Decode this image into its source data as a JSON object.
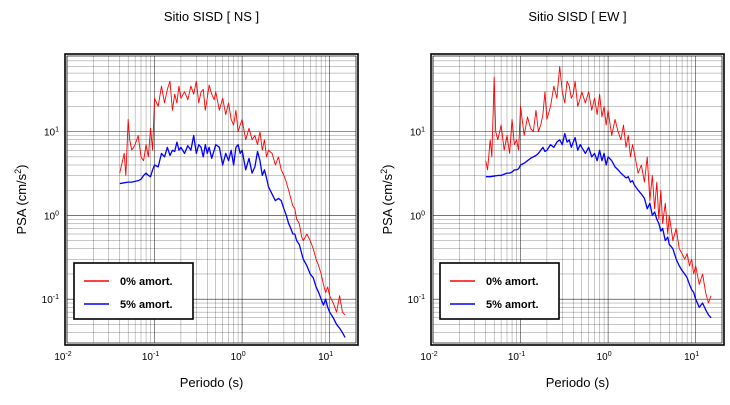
{
  "chart_data": [
    {
      "type": "line",
      "title": "Sitio SISD [ NS ]",
      "xlabel": "Periodo (s)",
      "ylabel": "PSA (cm/s",
      "ylabel_exp": "2",
      "ylabel_close": ")",
      "x_scale": "log",
      "y_scale": "log",
      "xlim": [
        0.01,
        20
      ],
      "ylim": [
        0.03,
        80
      ],
      "x_ticks": [
        {
          "base": "10",
          "exp": "-2",
          "value": 0.01
        },
        {
          "base": "10",
          "exp": "-1",
          "value": 0.1
        },
        {
          "base": "10",
          "exp": "0",
          "value": 1
        },
        {
          "base": "10",
          "exp": "1",
          "value": 10
        }
      ],
      "y_ticks": [
        {
          "base": "10",
          "exp": "-1",
          "value": 0.1
        },
        {
          "base": "10",
          "exp": "0",
          "value": 1
        },
        {
          "base": "10",
          "exp": "1",
          "value": 10
        }
      ],
      "grid": true,
      "legend_position": "bottom-left",
      "series": [
        {
          "name": "0% amort.",
          "color": "#ff0000",
          "x": [
            0.04,
            0.042,
            0.045,
            0.047,
            0.05,
            0.052,
            0.055,
            0.06,
            0.065,
            0.07,
            0.075,
            0.08,
            0.085,
            0.09,
            0.095,
            0.1,
            0.11,
            0.12,
            0.13,
            0.14,
            0.15,
            0.16,
            0.17,
            0.18,
            0.19,
            0.2,
            0.22,
            0.24,
            0.26,
            0.28,
            0.3,
            0.32,
            0.34,
            0.36,
            0.38,
            0.4,
            0.42,
            0.45,
            0.48,
            0.5,
            0.55,
            0.6,
            0.65,
            0.7,
            0.75,
            0.8,
            0.85,
            0.9,
            0.95,
            1.0,
            1.1,
            1.2,
            1.3,
            1.4,
            1.5,
            1.6,
            1.7,
            1.8,
            1.9,
            2.0,
            2.2,
            2.4,
            2.6,
            2.8,
            3.0,
            3.2,
            3.4,
            3.6,
            3.8,
            4.0,
            4.2,
            4.5,
            4.8,
            5.0,
            5.5,
            6.0,
            6.5,
            7.0,
            7.5,
            8.0,
            8.5,
            9.0,
            9.5,
            10.0,
            11.0,
            12.0,
            13.0,
            14.0,
            15.0
          ],
          "y": [
            3.2,
            4.0,
            5.5,
            3.0,
            14.0,
            8.0,
            6.0,
            7.0,
            9.0,
            5.0,
            4.5,
            7.0,
            5.0,
            11.0,
            6.0,
            25.0,
            20.0,
            35.0,
            22.0,
            32.0,
            40.0,
            18.0,
            28.0,
            22.0,
            35.0,
            25.0,
            30.0,
            24.0,
            35.0,
            28.0,
            40.0,
            22.0,
            30.0,
            32.0,
            18.0,
            25.0,
            36.0,
            28.0,
            24.0,
            30.0,
            18.0,
            25.0,
            16.0,
            22.0,
            14.0,
            12.0,
            18.0,
            10.0,
            12.0,
            14.0,
            8.0,
            11.0,
            8.0,
            9.0,
            7.0,
            10.0,
            6.0,
            8.0,
            5.0,
            6.0,
            5.5,
            4.0,
            5.0,
            3.5,
            3.0,
            2.5,
            2.0,
            1.6,
            1.3,
            1.2,
            0.9,
            0.8,
            0.55,
            0.5,
            0.6,
            0.5,
            0.4,
            0.3,
            0.25,
            0.2,
            0.15,
            0.12,
            0.14,
            0.11,
            0.09,
            0.07,
            0.11,
            0.07,
            0.065
          ]
        },
        {
          "name": "5% amort.",
          "color": "#0000ff",
          "x": [
            0.04,
            0.045,
            0.05,
            0.055,
            0.06,
            0.065,
            0.07,
            0.075,
            0.08,
            0.085,
            0.09,
            0.095,
            0.1,
            0.11,
            0.12,
            0.13,
            0.14,
            0.15,
            0.16,
            0.17,
            0.18,
            0.19,
            0.2,
            0.22,
            0.24,
            0.26,
            0.28,
            0.3,
            0.32,
            0.34,
            0.36,
            0.38,
            0.4,
            0.42,
            0.45,
            0.48,
            0.5,
            0.55,
            0.6,
            0.65,
            0.7,
            0.75,
            0.8,
            0.85,
            0.9,
            0.95,
            1.0,
            1.1,
            1.2,
            1.3,
            1.4,
            1.5,
            1.6,
            1.7,
            1.8,
            1.9,
            2.0,
            2.2,
            2.4,
            2.6,
            2.8,
            3.0,
            3.2,
            3.4,
            3.6,
            3.8,
            4.0,
            4.2,
            4.5,
            4.8,
            5.0,
            5.5,
            6.0,
            6.5,
            7.0,
            7.5,
            8.0,
            8.5,
            9.0,
            9.5,
            10.0,
            11.0,
            12.0,
            13.0,
            14.0,
            15.0
          ],
          "y": [
            2.4,
            2.45,
            2.5,
            2.5,
            2.55,
            2.6,
            2.7,
            3.0,
            3.2,
            3.0,
            2.9,
            3.5,
            4.0,
            3.8,
            5.5,
            5.0,
            6.5,
            5.2,
            6.0,
            5.8,
            7.5,
            6.0,
            6.5,
            5.5,
            6.8,
            6.0,
            9.0,
            5.5,
            7.0,
            6.5,
            5.0,
            7.0,
            5.5,
            6.5,
            4.8,
            6.0,
            7.0,
            6.5,
            4.0,
            5.5,
            4.5,
            6.0,
            4.0,
            6.5,
            7.0,
            5.5,
            6.0,
            3.5,
            4.8,
            3.2,
            3.8,
            5.8,
            4.5,
            3.0,
            3.5,
            2.8,
            2.2,
            1.8,
            1.5,
            1.6,
            1.5,
            1.2,
            1.0,
            0.8,
            0.7,
            0.6,
            0.6,
            0.5,
            0.45,
            0.35,
            0.3,
            0.25,
            0.2,
            0.18,
            0.14,
            0.12,
            0.1,
            0.085,
            0.1,
            0.08,
            0.07,
            0.06,
            0.05,
            0.045,
            0.04,
            0.035
          ]
        }
      ]
    },
    {
      "type": "line",
      "title": "Sitio SISD [ EW ]",
      "xlabel": "Periodo (s)",
      "ylabel": "PSA (cm/s",
      "ylabel_exp": "2",
      "ylabel_close": ")",
      "x_scale": "log",
      "y_scale": "log",
      "xlim": [
        0.01,
        20
      ],
      "ylim": [
        0.03,
        80
      ],
      "x_ticks": [
        {
          "base": "10",
          "exp": "-2",
          "value": 0.01
        },
        {
          "base": "10",
          "exp": "-1",
          "value": 0.1
        },
        {
          "base": "10",
          "exp": "0",
          "value": 1
        },
        {
          "base": "10",
          "exp": "1",
          "value": 10
        }
      ],
      "y_ticks": [
        {
          "base": "10",
          "exp": "-1",
          "value": 0.1
        },
        {
          "base": "10",
          "exp": "0",
          "value": 1
        },
        {
          "base": "10",
          "exp": "1",
          "value": 10
        }
      ],
      "grid": true,
      "legend_position": "bottom-left",
      "series": [
        {
          "name": "0% amort.",
          "color": "#ff0000",
          "x": [
            0.04,
            0.042,
            0.045,
            0.047,
            0.05,
            0.052,
            0.055,
            0.06,
            0.065,
            0.07,
            0.075,
            0.08,
            0.085,
            0.09,
            0.095,
            0.1,
            0.11,
            0.12,
            0.13,
            0.14,
            0.15,
            0.16,
            0.17,
            0.18,
            0.19,
            0.2,
            0.22,
            0.24,
            0.26,
            0.28,
            0.3,
            0.32,
            0.34,
            0.36,
            0.38,
            0.4,
            0.42,
            0.45,
            0.48,
            0.5,
            0.55,
            0.6,
            0.65,
            0.7,
            0.75,
            0.8,
            0.85,
            0.9,
            0.95,
            1.0,
            1.1,
            1.2,
            1.3,
            1.4,
            1.5,
            1.6,
            1.7,
            1.8,
            1.9,
            2.0,
            2.2,
            2.4,
            2.6,
            2.8,
            3.0,
            3.2,
            3.4,
            3.6,
            3.8,
            4.0,
            4.2,
            4.5,
            4.8,
            5.0,
            5.5,
            6.0,
            6.5,
            7.0,
            7.5,
            8.0,
            8.5,
            9.0,
            9.5,
            10.0,
            11.0,
            12.0,
            13.0,
            14.0,
            15.0
          ],
          "y": [
            4.5,
            3.5,
            8.0,
            5.0,
            45.0,
            10.0,
            8.0,
            12.0,
            6.0,
            9.0,
            5.5,
            14.0,
            7.0,
            8.0,
            6.0,
            20.0,
            9.0,
            15.0,
            11.0,
            10.0,
            18.0,
            10.0,
            12.0,
            16.0,
            30.0,
            14.0,
            20.0,
            35.0,
            25.0,
            60.0,
            30.0,
            22.0,
            40.0,
            35.0,
            25.0,
            28.0,
            40.0,
            20.0,
            25.0,
            30.0,
            22.0,
            30.0,
            18.0,
            25.0,
            16.0,
            28.0,
            15.0,
            20.0,
            12.0,
            18.0,
            9.0,
            14.0,
            10.0,
            8.0,
            12.0,
            6.5,
            9.0,
            5.0,
            7.0,
            5.5,
            3.2,
            4.0,
            2.5,
            5.0,
            1.5,
            3.0,
            1.2,
            2.5,
            0.9,
            2.0,
            0.8,
            1.4,
            0.6,
            1.0,
            0.5,
            0.7,
            0.4,
            0.35,
            0.3,
            0.35,
            0.25,
            0.3,
            0.2,
            0.25,
            0.15,
            0.2,
            0.12,
            0.09,
            0.11
          ]
        },
        {
          "name": "5% amort.",
          "color": "#0000ff",
          "x": [
            0.04,
            0.045,
            0.05,
            0.055,
            0.06,
            0.065,
            0.07,
            0.075,
            0.08,
            0.085,
            0.09,
            0.095,
            0.1,
            0.11,
            0.12,
            0.13,
            0.14,
            0.15,
            0.16,
            0.17,
            0.18,
            0.19,
            0.2,
            0.22,
            0.24,
            0.26,
            0.28,
            0.3,
            0.32,
            0.34,
            0.36,
            0.38,
            0.4,
            0.42,
            0.45,
            0.48,
            0.5,
            0.55,
            0.6,
            0.65,
            0.7,
            0.75,
            0.8,
            0.85,
            0.9,
            0.95,
            1.0,
            1.1,
            1.2,
            1.3,
            1.4,
            1.5,
            1.6,
            1.7,
            1.8,
            1.9,
            2.0,
            2.2,
            2.4,
            2.6,
            2.8,
            3.0,
            3.2,
            3.4,
            3.6,
            3.8,
            4.0,
            4.2,
            4.5,
            4.8,
            5.0,
            5.5,
            6.0,
            6.5,
            7.0,
            7.5,
            8.0,
            8.5,
            9.0,
            9.5,
            10.0,
            11.0,
            12.0,
            13.0,
            14.0,
            15.0
          ],
          "y": [
            2.9,
            2.9,
            2.95,
            3.0,
            3.0,
            3.1,
            3.2,
            3.2,
            3.3,
            3.5,
            3.5,
            3.6,
            4.0,
            4.2,
            4.5,
            4.8,
            5.0,
            5.2,
            5.5,
            6.0,
            6.5,
            5.8,
            6.0,
            7.0,
            6.5,
            7.5,
            8.0,
            7.0,
            9.5,
            7.5,
            8.0,
            6.5,
            7.5,
            8.5,
            6.0,
            7.0,
            6.5,
            5.5,
            6.5,
            5.0,
            5.5,
            4.5,
            6.0,
            4.5,
            5.5,
            4.0,
            5.0,
            4.5,
            3.8,
            3.5,
            3.2,
            3.0,
            2.8,
            2.9,
            2.5,
            2.6,
            2.3,
            2.0,
            1.8,
            1.6,
            1.2,
            1.4,
            1.0,
            1.1,
            0.9,
            0.8,
            0.65,
            0.7,
            0.5,
            0.55,
            0.45,
            0.4,
            0.3,
            0.25,
            0.22,
            0.2,
            0.18,
            0.15,
            0.13,
            0.12,
            0.1,
            0.08,
            0.09,
            0.075,
            0.065,
            0.06
          ]
        }
      ]
    }
  ]
}
